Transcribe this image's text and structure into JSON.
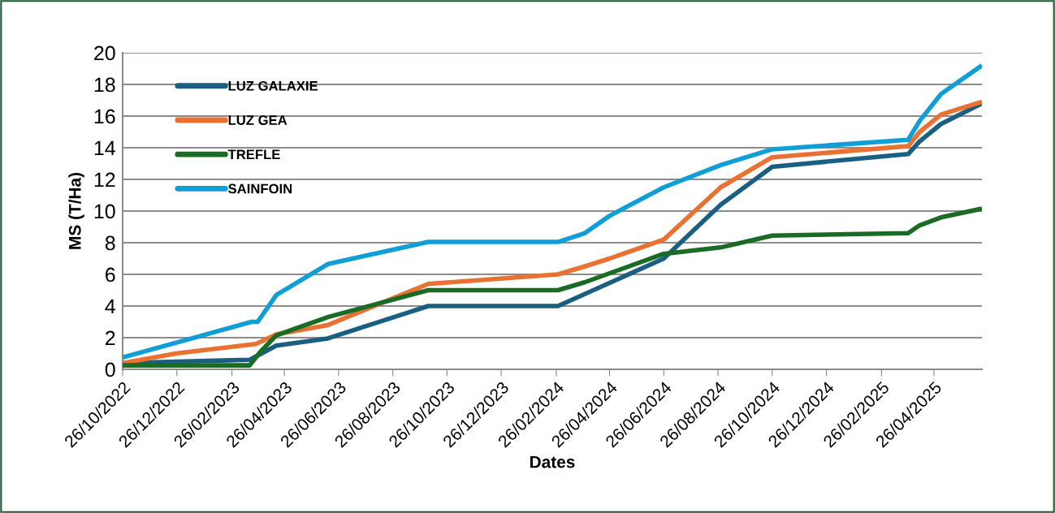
{
  "chart_data": {
    "type": "line",
    "xlabel": "Dates",
    "ylabel": "MS (T/Ha)",
    "xlim": [
      "2022-10-26",
      "2025-06-19"
    ],
    "xticks": [
      {
        "value": "2022-10-26",
        "label": "26/10/2022"
      },
      {
        "value": "2022-12-26",
        "label": "26/12/2022"
      },
      {
        "value": "2023-02-26",
        "label": "26/02/2023"
      },
      {
        "value": "2023-04-26",
        "label": "26/04/2023"
      },
      {
        "value": "2023-06-26",
        "label": "26/06/2023"
      },
      {
        "value": "2023-08-26",
        "label": "26/08/2023"
      },
      {
        "value": "2023-10-26",
        "label": "26/10/2023"
      },
      {
        "value": "2023-12-26",
        "label": "26/12/2023"
      },
      {
        "value": "2024-02-26",
        "label": "26/02/2024"
      },
      {
        "value": "2024-04-26",
        "label": "26/04/2024"
      },
      {
        "value": "2024-06-26",
        "label": "26/06/2024"
      },
      {
        "value": "2024-08-26",
        "label": "26/08/2024"
      },
      {
        "value": "2024-10-26",
        "label": "26/10/2024"
      },
      {
        "value": "2024-12-26",
        "label": "26/12/2024"
      },
      {
        "value": "2025-02-26",
        "label": "26/02/2025"
      },
      {
        "value": "2025-04-26",
        "label": "26/04/2025"
      }
    ],
    "ylim": [
      0,
      20
    ],
    "yticks": [
      0,
      2,
      4,
      6,
      8,
      10,
      12,
      14,
      16,
      18,
      20
    ],
    "grid": "y",
    "legend": "top left",
    "marker": "none",
    "line_style": "solid",
    "series": [
      {
        "name": "LUZ GALAXIE",
        "color": "#1a5f82",
        "x": [
          "2022-10-26",
          "2023-03-18",
          "2023-04-17",
          "2023-06-14",
          "2023-10-05",
          "2024-02-28",
          "2024-06-26",
          "2024-08-29",
          "2024-10-26",
          "2025-03-28",
          "2025-04-10",
          "2025-05-04",
          "2025-06-19"
        ],
        "values": [
          0.4,
          0.6,
          1.5,
          1.95,
          4.0,
          4.0,
          7.0,
          10.4,
          12.8,
          13.6,
          14.4,
          15.5,
          16.8
        ]
      },
      {
        "name": "LUZ GEA",
        "color": "#e97132",
        "x": [
          "2022-10-26",
          "2022-12-25",
          "2023-03-25",
          "2023-04-17",
          "2023-06-14",
          "2023-10-05",
          "2024-02-28",
          "2024-03-29",
          "2024-04-26",
          "2024-06-26",
          "2024-08-29",
          "2024-10-26",
          "2025-03-28",
          "2025-04-10",
          "2025-05-04",
          "2025-06-19"
        ],
        "values": [
          0.4,
          1.0,
          1.6,
          2.2,
          2.8,
          5.4,
          6.0,
          6.5,
          7.0,
          8.2,
          11.5,
          13.4,
          14.1,
          15.0,
          16.1,
          16.9
        ]
      },
      {
        "name": "TREFLE",
        "color": "#1a6b24",
        "x": [
          "2022-10-26",
          "2023-03-18",
          "2023-03-30",
          "2023-04-17",
          "2023-06-14",
          "2023-10-05",
          "2024-02-28",
          "2024-03-29",
          "2024-06-26",
          "2024-08-29",
          "2024-10-26",
          "2025-03-28",
          "2025-04-10",
          "2025-05-04",
          "2025-06-19"
        ],
        "values": [
          0.25,
          0.25,
          1.1,
          2.15,
          3.3,
          5.0,
          5.0,
          5.5,
          7.3,
          7.7,
          8.45,
          8.6,
          9.1,
          9.6,
          10.15
        ]
      },
      {
        "name": "SAINFOIN",
        "color": "#0f9ed5",
        "x": [
          "2022-10-26",
          "2023-03-20",
          "2023-03-27",
          "2023-04-17",
          "2023-06-14",
          "2023-10-05",
          "2024-02-28",
          "2024-03-29",
          "2024-04-26",
          "2024-06-26",
          "2024-08-29",
          "2024-10-26",
          "2025-03-28",
          "2025-04-10",
          "2025-05-04",
          "2025-06-19"
        ],
        "values": [
          0.75,
          3.0,
          3.0,
          4.7,
          6.65,
          8.05,
          8.05,
          8.6,
          9.7,
          11.5,
          12.9,
          13.9,
          14.5,
          15.7,
          17.4,
          19.2
        ]
      }
    ]
  }
}
